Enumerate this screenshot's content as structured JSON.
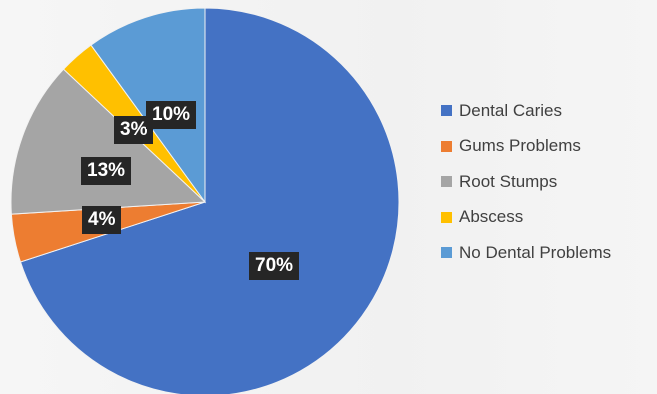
{
  "chart_data": {
    "type": "pie",
    "title": "",
    "slices": [
      {
        "label": "Dental Caries",
        "value": 70,
        "data_label": "70%",
        "color": "#4472c4"
      },
      {
        "label": "Gums Problems",
        "value": 4,
        "data_label": "4%",
        "color": "#ed7d31"
      },
      {
        "label": "Root Stumps",
        "value": 13,
        "data_label": "13%",
        "color": "#a5a5a5"
      },
      {
        "label": "Abscess",
        "value": 3,
        "data_label": "3%",
        "color": "#ffc000"
      },
      {
        "label": "No Dental Problems",
        "value": 10,
        "data_label": "10%",
        "color": "#5b9bd5"
      }
    ],
    "legend_position": "right",
    "data_label_style": "white text on dark box"
  }
}
